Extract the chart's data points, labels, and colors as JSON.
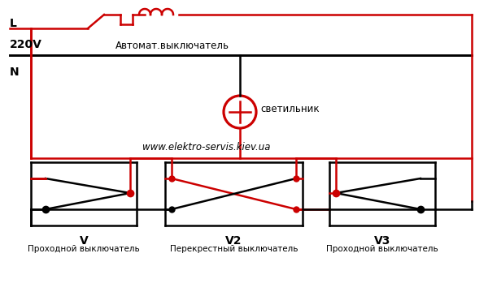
{
  "bg_color": "#ffffff",
  "red": "#cc0000",
  "black": "#000000",
  "title_text": "www.elektro-servis.kiev.ua",
  "label_L": "L",
  "label_220V": "220V",
  "label_N": "N",
  "label_avtomat": "Автомат.выключатель",
  "label_svetilnik": "светильник",
  "label_V": "V",
  "label_V_desc": "Проходной выключатель",
  "label_V2": "V2",
  "label_V2_desc": "Перекрестный выключатель",
  "label_V3": "V3",
  "label_V3_desc": "Проходной выключатель",
  "figsize": [
    6.0,
    3.6
  ],
  "dpi": 100
}
